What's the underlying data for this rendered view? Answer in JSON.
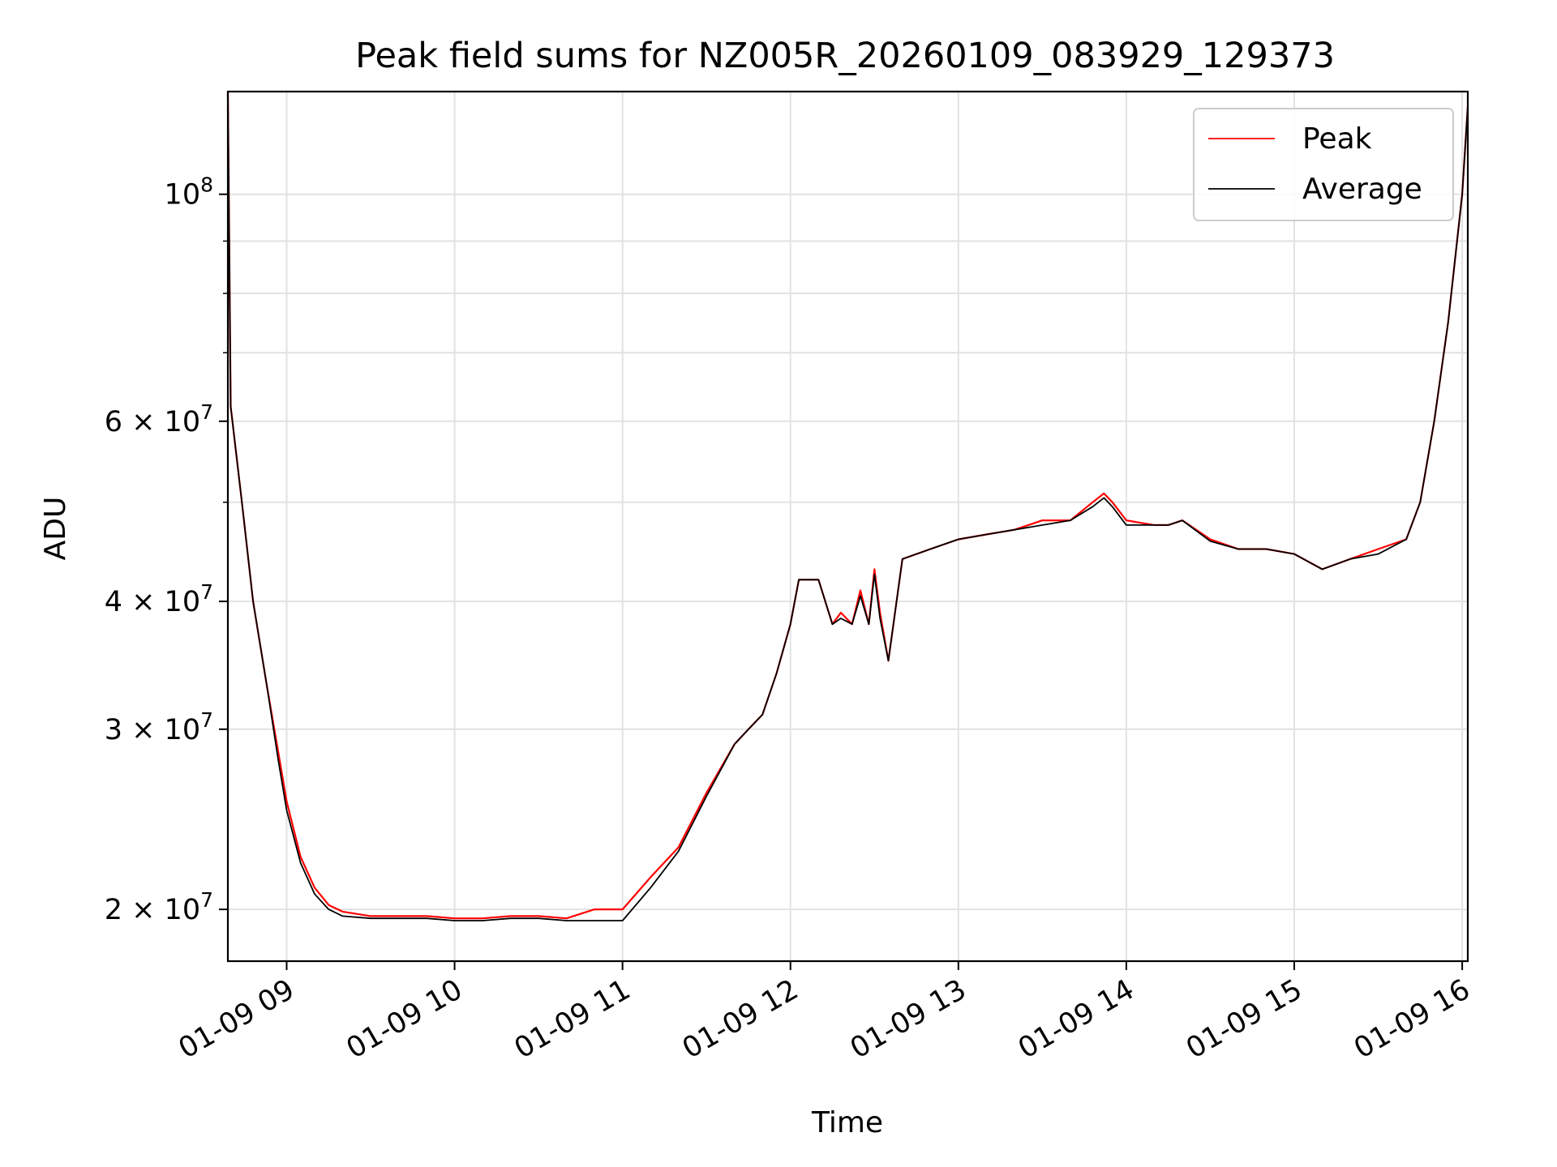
{
  "chart_data": {
    "type": "line",
    "title": "Peak field sums for NZ005R_20260109_083929_129373",
    "xlabel": "Time",
    "ylabel": "ADU",
    "y_scale": "log",
    "ylim": [
      17800000,
      126000000
    ],
    "xlim": [
      "01-09 08:39",
      "01-09 16:02"
    ],
    "x_ticks": [
      "01-09 09",
      "01-09 10",
      "01-09 11",
      "01-09 12",
      "01-09 13",
      "01-09 14",
      "01-09 15",
      "01-09 16"
    ],
    "y_ticks_major": [
      {
        "value": 20000000,
        "coef": "2",
        "exp": "7"
      },
      {
        "value": 30000000,
        "coef": "3",
        "exp": "7"
      },
      {
        "value": 40000000,
        "coef": "4",
        "exp": "7"
      },
      {
        "value": 60000000,
        "coef": "6",
        "exp": "7"
      },
      {
        "value": 100000000,
        "coef": "",
        "exp": "8"
      }
    ],
    "y_ticks_minor": [
      50000000,
      70000000,
      80000000,
      90000000
    ],
    "grid": true,
    "legend_position": "top-right",
    "series": [
      {
        "name": "Peak",
        "color": "#ff0000",
        "x": [
          "01-09 08:39",
          "01-09 08:40",
          "01-09 08:44",
          "01-09 08:48",
          "01-09 08:53",
          "01-09 08:57",
          "01-09 09:00",
          "01-09 09:05",
          "01-09 09:10",
          "01-09 09:15",
          "01-09 09:20",
          "01-09 09:30",
          "01-09 09:40",
          "01-09 09:50",
          "01-09 10:00",
          "01-09 10:10",
          "01-09 10:20",
          "01-09 10:30",
          "01-09 10:40",
          "01-09 10:50",
          "01-09 11:00",
          "01-09 11:10",
          "01-09 11:20",
          "01-09 11:30",
          "01-09 11:40",
          "01-09 11:45",
          "01-09 11:50",
          "01-09 11:55",
          "01-09 12:00",
          "01-09 12:03",
          "01-09 12:10",
          "01-09 12:15",
          "01-09 12:18",
          "01-09 12:22",
          "01-09 12:25",
          "01-09 12:28",
          "01-09 12:30",
          "01-09 12:32",
          "01-09 12:35",
          "01-09 12:40",
          "01-09 12:50",
          "01-09 13:00",
          "01-09 13:10",
          "01-09 13:20",
          "01-09 13:30",
          "01-09 13:40",
          "01-09 13:48",
          "01-09 13:52",
          "01-09 13:55",
          "01-09 14:00",
          "01-09 14:10",
          "01-09 14:15",
          "01-09 14:20",
          "01-09 14:30",
          "01-09 14:40",
          "01-09 14:50",
          "01-09 15:00",
          "01-09 15:10",
          "01-09 15:20",
          "01-09 15:30",
          "01-09 15:40",
          "01-09 15:45",
          "01-09 15:50",
          "01-09 15:55",
          "01-09 16:00",
          "01-09 16:02"
        ],
        "y": [
          126000000,
          62000000,
          50000000,
          40000000,
          33000000,
          28500000,
          25500000,
          22500000,
          21000000,
          20200000,
          19900000,
          19700000,
          19700000,
          19700000,
          19600000,
          19600000,
          19700000,
          19700000,
          19600000,
          20000000,
          20000000,
          21500000,
          23000000,
          26000000,
          29000000,
          30000000,
          31000000,
          34000000,
          38000000,
          42000000,
          42000000,
          38000000,
          39000000,
          38000000,
          41000000,
          38000000,
          43000000,
          39000000,
          35000000,
          44000000,
          45000000,
          46000000,
          46500000,
          47000000,
          48000000,
          48000000,
          50000000,
          51000000,
          50000000,
          48000000,
          47500000,
          47500000,
          48000000,
          46000000,
          45000000,
          45000000,
          44500000,
          43000000,
          44000000,
          45000000,
          46000000,
          50000000,
          60000000,
          75000000,
          100000000,
          122000000
        ]
      },
      {
        "name": "Average",
        "color": "#000000",
        "x": [
          "01-09 08:39",
          "01-09 08:40",
          "01-09 08:44",
          "01-09 08:48",
          "01-09 08:53",
          "01-09 08:57",
          "01-09 09:00",
          "01-09 09:05",
          "01-09 09:10",
          "01-09 09:15",
          "01-09 09:20",
          "01-09 09:30",
          "01-09 09:40",
          "01-09 09:50",
          "01-09 10:00",
          "01-09 10:10",
          "01-09 10:20",
          "01-09 10:30",
          "01-09 10:40",
          "01-09 10:50",
          "01-09 11:00",
          "01-09 11:10",
          "01-09 11:20",
          "01-09 11:30",
          "01-09 11:40",
          "01-09 11:45",
          "01-09 11:50",
          "01-09 11:55",
          "01-09 12:00",
          "01-09 12:03",
          "01-09 12:10",
          "01-09 12:15",
          "01-09 12:18",
          "01-09 12:22",
          "01-09 12:25",
          "01-09 12:28",
          "01-09 12:30",
          "01-09 12:32",
          "01-09 12:35",
          "01-09 12:40",
          "01-09 12:50",
          "01-09 13:00",
          "01-09 13:10",
          "01-09 13:20",
          "01-09 13:30",
          "01-09 13:40",
          "01-09 13:48",
          "01-09 13:52",
          "01-09 13:55",
          "01-09 14:00",
          "01-09 14:10",
          "01-09 14:15",
          "01-09 14:20",
          "01-09 14:30",
          "01-09 14:40",
          "01-09 14:50",
          "01-09 15:00",
          "01-09 15:10",
          "01-09 15:20",
          "01-09 15:30",
          "01-09 15:40",
          "01-09 15:45",
          "01-09 15:50",
          "01-09 15:55",
          "01-09 16:00",
          "01-09 16:02"
        ],
        "y": [
          126000000,
          62000000,
          50000000,
          40000000,
          33000000,
          28000000,
          25000000,
          22200000,
          20700000,
          20000000,
          19700000,
          19600000,
          19600000,
          19600000,
          19500000,
          19500000,
          19600000,
          19600000,
          19500000,
          19500000,
          19500000,
          21000000,
          22800000,
          25800000,
          29000000,
          30000000,
          31000000,
          34000000,
          38000000,
          42000000,
          42000000,
          38000000,
          38500000,
          38000000,
          40500000,
          38000000,
          42500000,
          38500000,
          35000000,
          44000000,
          45000000,
          46000000,
          46500000,
          47000000,
          47500000,
          48000000,
          49500000,
          50500000,
          49500000,
          47500000,
          47500000,
          47500000,
          48000000,
          45800000,
          45000000,
          45000000,
          44500000,
          43000000,
          44000000,
          44500000,
          46000000,
          50000000,
          60000000,
          75000000,
          100000000,
          122000000
        ]
      }
    ]
  }
}
